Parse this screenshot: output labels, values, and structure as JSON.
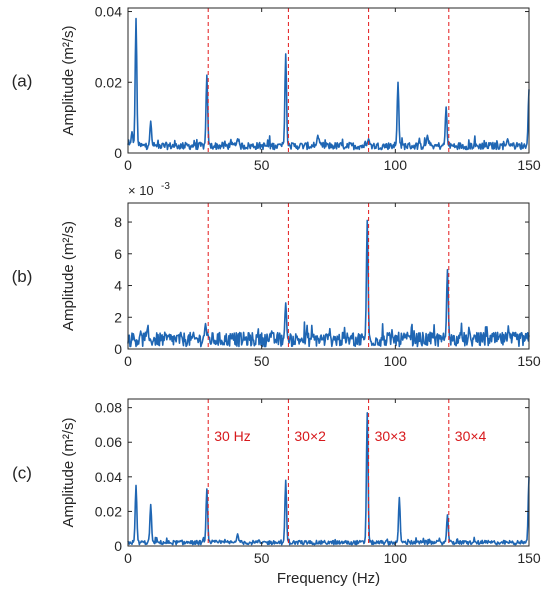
{
  "colors": {
    "series": "#1f66b3",
    "marker_line": "#e31a1c",
    "marker_label": "#d7191c",
    "axis": "#262626"
  },
  "figure": {
    "xlabel": "Frequency (Hz)"
  },
  "chart_data": [
    {
      "type": "line",
      "panel_label": "(a)",
      "ylabel": "Amplitude (m²/s)",
      "xlim": [
        0,
        150
      ],
      "ylim": [
        0,
        0.041
      ],
      "xticks": [
        0,
        50,
        100,
        150
      ],
      "yticks": [
        0,
        0.02,
        0.04
      ],
      "ytick_labels": [
        "0",
        "0.02",
        "0.04"
      ],
      "yscale_note": "",
      "baseline": 0.002,
      "noise": 0.0017,
      "peaks": [
        {
          "x": 1.5,
          "y": 0.006
        },
        {
          "x": 3,
          "y": 0.038
        },
        {
          "x": 8.5,
          "y": 0.009
        },
        {
          "x": 29.5,
          "y": 0.022
        },
        {
          "x": 41,
          "y": 0.004
        },
        {
          "x": 59,
          "y": 0.028
        },
        {
          "x": 71,
          "y": 0.005
        },
        {
          "x": 90,
          "y": 0.004
        },
        {
          "x": 101,
          "y": 0.02
        },
        {
          "x": 112,
          "y": 0.005
        },
        {
          "x": 119,
          "y": 0.013
        },
        {
          "x": 142,
          "y": 0.004
        },
        {
          "x": 150,
          "y": 0.018
        }
      ],
      "marker_lines_x": [
        30,
        60,
        90,
        120
      ],
      "marker_labels": []
    },
    {
      "type": "line",
      "panel_label": "(b)",
      "ylabel": "Amplitude (m²/s)",
      "xlim": [
        0,
        150
      ],
      "ylim": [
        0,
        9.2
      ],
      "xticks": [
        0,
        50,
        100,
        150
      ],
      "yticks": [
        0,
        2,
        4,
        6,
        8
      ],
      "ytick_labels": [
        "0",
        "2",
        "4",
        "6",
        "8"
      ],
      "yscale_note": "× 10",
      "yscale_exp": "-3",
      "baseline": 0.6,
      "noise": 0.75,
      "peaks": [
        {
          "x": 29,
          "y": 1.6
        },
        {
          "x": 59,
          "y": 2.9
        },
        {
          "x": 89.5,
          "y": 8.1
        },
        {
          "x": 119.5,
          "y": 5.0
        }
      ],
      "marker_lines_x": [
        30,
        60,
        90,
        120
      ],
      "marker_labels": []
    },
    {
      "type": "line",
      "panel_label": "(c)",
      "ylabel": "Amplitude (m²/s)",
      "xlim": [
        0,
        150
      ],
      "ylim": [
        0,
        0.085
      ],
      "xticks": [
        0,
        50,
        100,
        150
      ],
      "yticks": [
        0,
        0.02,
        0.04,
        0.06,
        0.08
      ],
      "ytick_labels": [
        "0",
        "0.02",
        "0.04",
        "0.06",
        "0.08"
      ],
      "yscale_note": "",
      "baseline": 0.002,
      "noise": 0.002,
      "peaks": [
        {
          "x": 3,
          "y": 0.035
        },
        {
          "x": 8.5,
          "y": 0.024
        },
        {
          "x": 29.5,
          "y": 0.033
        },
        {
          "x": 41,
          "y": 0.007
        },
        {
          "x": 59,
          "y": 0.038
        },
        {
          "x": 89.5,
          "y": 0.077
        },
        {
          "x": 101.5,
          "y": 0.028
        },
        {
          "x": 119.5,
          "y": 0.018
        },
        {
          "x": 150,
          "y": 0.04
        }
      ],
      "marker_lines_x": [
        30,
        60,
        90,
        120
      ],
      "marker_labels": [
        {
          "x": 30,
          "text": "30 Hz"
        },
        {
          "x": 60,
          "text": "30×2"
        },
        {
          "x": 90,
          "text": "30×3"
        },
        {
          "x": 120,
          "text": "30×4"
        }
      ]
    }
  ]
}
